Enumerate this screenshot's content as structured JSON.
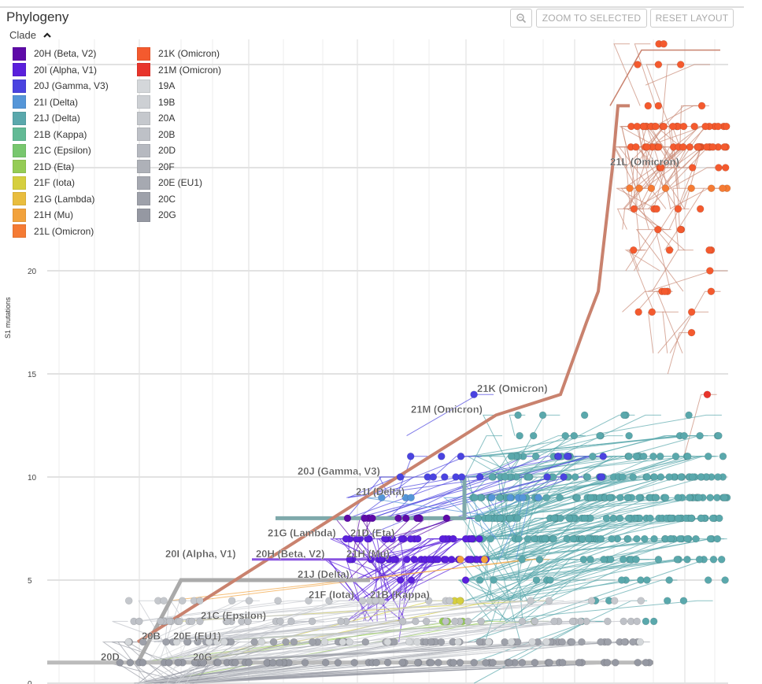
{
  "header": {
    "title": "Phylogeny",
    "zoom_icon": "magnifier-icon",
    "zoom_to_selected": "ZOOM TO SELECTED",
    "reset_layout": "RESET LAYOUT"
  },
  "legend": {
    "title": "Clade",
    "toggle_icon": "chevron-up-icon",
    "items": [
      {
        "label": "20H (Beta, V2)",
        "color": "#5e0aa8"
      },
      {
        "label": "20I (Alpha, V1)",
        "color": "#5a1fdc"
      },
      {
        "label": "20J (Gamma, V3)",
        "color": "#4a43e0"
      },
      {
        "label": "21I (Delta)",
        "color": "#5596d8"
      },
      {
        "label": "21J (Delta)",
        "color": "#5aa8ac"
      },
      {
        "label": "21B (Kappa)",
        "color": "#62ba95"
      },
      {
        "label": "21C (Epsilon)",
        "color": "#78c76e"
      },
      {
        "label": "21D (Eta)",
        "color": "#95cc55"
      },
      {
        "label": "21F (Iota)",
        "color": "#d6cf3e"
      },
      {
        "label": "21G (Lambda)",
        "color": "#e9bd3e"
      },
      {
        "label": "21H (Mu)",
        "color": "#f2a23c"
      },
      {
        "label": "21L (Omicron)",
        "color": "#f57b34"
      },
      {
        "label": "21K (Omicron)",
        "color": "#f45a2e"
      },
      {
        "label": "21M (Omicron)",
        "color": "#e8342b"
      },
      {
        "label": "19A",
        "color": "#d4d7da"
      },
      {
        "label": "19B",
        "color": "#cdd0d4"
      },
      {
        "label": "20A",
        "color": "#c5c8cd"
      },
      {
        "label": "20B",
        "color": "#bec1c7"
      },
      {
        "label": "20D",
        "color": "#b6b9c0"
      },
      {
        "label": "20F",
        "color": "#aeb1b8"
      },
      {
        "label": "20E (EU1)",
        "color": "#a6a9b1"
      },
      {
        "label": "20C",
        "color": "#9ea1aa"
      },
      {
        "label": "20G",
        "color": "#9598a2"
      }
    ]
  },
  "chart_data": {
    "type": "tree",
    "ylabel": "S1 mutations",
    "yticks": [
      "0",
      "5",
      "10",
      "15",
      "20"
    ],
    "ylim": [
      0,
      31
    ],
    "grid": true,
    "clade_labels": [
      {
        "text": "21L (Omicron)",
        "y": 25
      },
      {
        "text": "21K (Omicron)",
        "y": 14
      },
      {
        "text": "21M (Omicron)",
        "y": 13
      },
      {
        "text": "20J (Gamma, V3)",
        "y": 10
      },
      {
        "text": "21I (Delta)",
        "y": 9
      },
      {
        "text": "21G (Lambda)",
        "y": 7
      },
      {
        "text": "21D (Eta)",
        "y": 7
      },
      {
        "text": "20I (Alpha, V1)",
        "y": 6
      },
      {
        "text": "20H (Beta, V2)",
        "y": 6
      },
      {
        "text": "21H (Mu)",
        "y": 6
      },
      {
        "text": "21J (Delta)",
        "y": 5
      },
      {
        "text": "21F (Iota)",
        "y": 4
      },
      {
        "text": "21B (Kappa)",
        "y": 4
      },
      {
        "text": "21C (Epsilon)",
        "y": 3
      },
      {
        "text": "20B",
        "y": 2
      },
      {
        "text": "20E (EU1)",
        "y": 2
      },
      {
        "text": "20D",
        "y": 1
      },
      {
        "text": "20G",
        "y": 1
      }
    ],
    "tips": [
      {
        "clade": "21K (Omicron)",
        "y": 31,
        "n": 2
      },
      {
        "clade": "21K (Omicron)",
        "y": 30,
        "n": 3
      },
      {
        "clade": "21K (Omicron)",
        "y": 28,
        "n": 3
      },
      {
        "clade": "21K (Omicron)",
        "y": 27,
        "n": 24
      },
      {
        "clade": "21K (Omicron)",
        "y": 26,
        "n": 24
      },
      {
        "clade": "21K (Omicron)",
        "y": 25,
        "n": 6
      },
      {
        "clade": "21L (Omicron)",
        "y": 24,
        "n": 8
      },
      {
        "clade": "21K (Omicron)",
        "y": 23,
        "n": 5
      },
      {
        "clade": "21K (Omicron)",
        "y": 22,
        "n": 3
      },
      {
        "clade": "21K (Omicron)",
        "y": 21,
        "n": 4
      },
      {
        "clade": "21K (Omicron)",
        "y": 20,
        "n": 1
      },
      {
        "clade": "21K (Omicron)",
        "y": 19,
        "n": 4
      },
      {
        "clade": "21K (Omicron)",
        "y": 18,
        "n": 3
      },
      {
        "clade": "21K (Omicron)",
        "y": 17,
        "n": 1
      },
      {
        "clade": "21M (Omicron)",
        "y": 14,
        "n": 1
      },
      {
        "clade": "20J (Gamma, V3)",
        "y": 14,
        "n": 1
      },
      {
        "clade": "21J (Delta)",
        "y": 13,
        "n": 6
      },
      {
        "clade": "21J (Delta)",
        "y": 12,
        "n": 12
      },
      {
        "clade": "21J (Delta)",
        "y": 11,
        "n": 25
      },
      {
        "clade": "21J (Delta)",
        "y": 10,
        "n": 45
      },
      {
        "clade": "21J (Delta)",
        "y": 9,
        "n": 60
      },
      {
        "clade": "21J (Delta)",
        "y": 8,
        "n": 60
      },
      {
        "clade": "21J (Delta)",
        "y": 7,
        "n": 50
      },
      {
        "clade": "21J (Delta)",
        "y": 6,
        "n": 20
      },
      {
        "clade": "21J (Delta)",
        "y": 5,
        "n": 12
      },
      {
        "clade": "21J (Delta)",
        "y": 4,
        "n": 4
      },
      {
        "clade": "21J (Delta)",
        "y": 3,
        "n": 3
      },
      {
        "clade": "20J (Gamma, V3)",
        "y": 11,
        "n": 8
      },
      {
        "clade": "20J (Gamma, V3)",
        "y": 10,
        "n": 12
      },
      {
        "clade": "21I (Delta)",
        "y": 9,
        "n": 8
      },
      {
        "clade": "20H (Beta, V2)",
        "y": 8,
        "n": 10
      },
      {
        "clade": "20I (Alpha, V1)",
        "y": 7,
        "n": 25
      },
      {
        "clade": "20I (Alpha, V1)",
        "y": 6,
        "n": 35
      },
      {
        "clade": "20I (Alpha, V1)",
        "y": 5,
        "n": 3
      },
      {
        "clade": "21F (Iota)",
        "y": 4,
        "n": 3
      },
      {
        "clade": "21D (Eta)",
        "y": 3,
        "n": 4
      },
      {
        "clade": "21H (Mu)",
        "y": 6,
        "n": 2
      },
      {
        "clade": "20A",
        "y": 4,
        "n": 25
      },
      {
        "clade": "20B",
        "y": 3,
        "n": 45
      },
      {
        "clade": "20C",
        "y": 2,
        "n": 60
      },
      {
        "clade": "20G",
        "y": 1,
        "n": 70
      },
      {
        "clade": "19A",
        "y": 2,
        "n": 20
      }
    ]
  }
}
